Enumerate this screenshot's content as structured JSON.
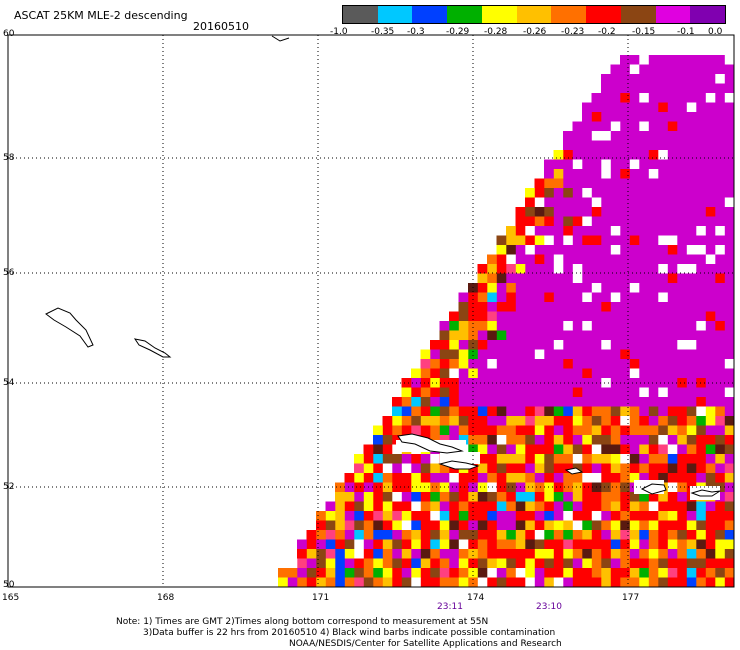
{
  "title": "ASCAT 25KM MLE-2 descending",
  "date": "20160510",
  "colorbar": {
    "labels": [
      "-1.0",
      "-0.35",
      "-0.3",
      "-0.29",
      "-0.28",
      "-0.26",
      "-0.23",
      "-0.2",
      "-0.15",
      "-0.1",
      "0.0"
    ],
    "colors": [
      "#5a5a5a",
      "#00c8ff",
      "#0040ff",
      "#00b000",
      "#ffff00",
      "#ffc000",
      "#ff7000",
      "#ff0000",
      "#8b4513",
      "#e000e0",
      "#8000b0"
    ]
  },
  "latitude_labels": [
    "60",
    "58",
    "56",
    "54",
    "52",
    "50"
  ],
  "longitude_labels": [
    "165",
    "168",
    "171",
    "174",
    "177"
  ],
  "time_labels": [
    "23:11",
    "23:10"
  ],
  "notes": {
    "line1": "Note: 1) Times are GMT 2)Times along bottom correspond to measurement at 55N",
    "line2": "3)Data buffer is 22 hrs from 20160510 4) Black wind barbs indicate possible contamination",
    "line3": "NOAA/NESDIS/Center for Satellite Applications and Research"
  },
  "palette": {
    "magenta": "#cc00cc",
    "red": "#ff0000",
    "orange": "#ff8000",
    "yellow": "#ffff00",
    "brown": "#8b4513",
    "grid": "#000000"
  }
}
